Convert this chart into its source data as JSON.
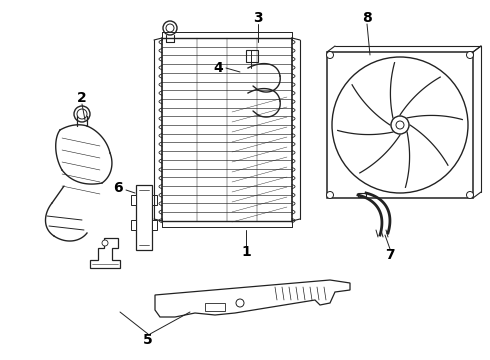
{
  "bg_color": "#ffffff",
  "line_color": "#222222",
  "label_color": "#000000",
  "label_fontsize": 10,
  "figsize": [
    4.9,
    3.6
  ],
  "dpi": 100
}
